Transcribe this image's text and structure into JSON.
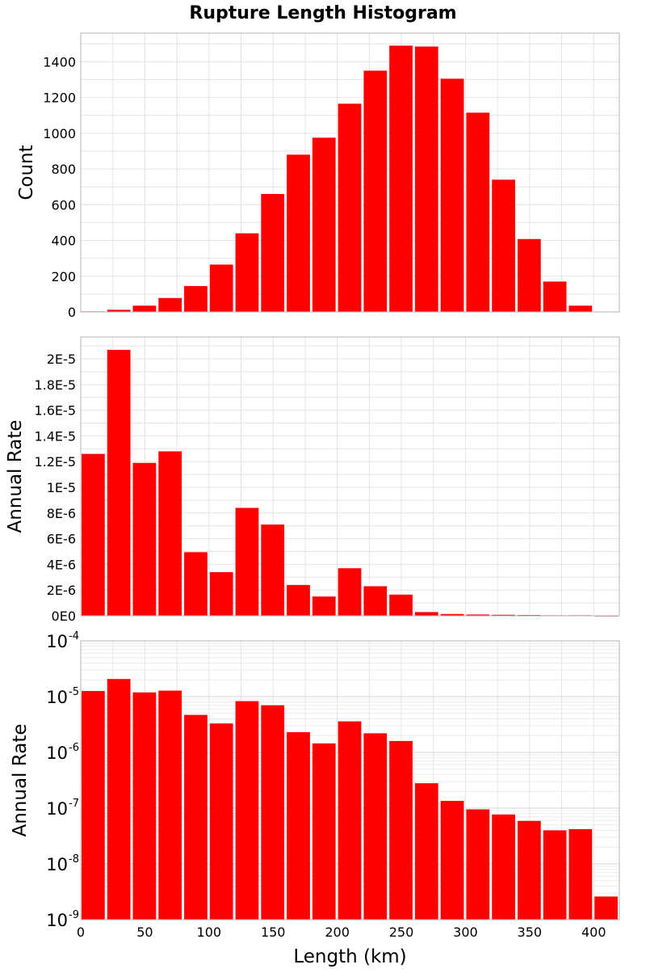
{
  "figure": {
    "title": "Rupture Length Histogram"
  },
  "chart_data": [
    {
      "type": "bar",
      "title": "Rupture Length Histogram",
      "xlabel": "",
      "ylabel": "Count",
      "xlim": [
        0,
        420
      ],
      "ylim": [
        0,
        1560
      ],
      "yscale": "linear",
      "yticks": [
        0,
        200,
        400,
        600,
        800,
        1000,
        1200,
        1400
      ],
      "ytick_labels": [
        "0",
        "200",
        "400",
        "600",
        "800",
        "1000",
        "1200",
        "1400"
      ],
      "grid": true,
      "bin_width": 20,
      "color": "#ff0000",
      "x": [
        10,
        30,
        50,
        70,
        90,
        110,
        130,
        150,
        170,
        190,
        210,
        230,
        250,
        270,
        290,
        310,
        330,
        350,
        370,
        390,
        410
      ],
      "values": [
        3,
        12,
        35,
        78,
        145,
        265,
        440,
        660,
        880,
        975,
        1165,
        1350,
        1490,
        1485,
        1305,
        1115,
        740,
        408,
        170,
        35,
        2
      ]
    },
    {
      "type": "bar",
      "xlabel": "",
      "ylabel": "Annual Rate",
      "xlim": [
        0,
        420
      ],
      "ylim": [
        0,
        2.17e-05
      ],
      "yscale": "linear",
      "yticks": [
        0,
        2e-06,
        4e-06,
        6e-06,
        8e-06,
        1e-05,
        1.2e-05,
        1.4e-05,
        1.6e-05,
        1.8e-05,
        2e-05
      ],
      "ytick_labels": [
        "0E0",
        "2E-6",
        "4E-6",
        "6E-6",
        "8E-6",
        "1E-5",
        "1.2E-5",
        "1.4E-5",
        "1.6E-5",
        "1.8E-5",
        "2E-5"
      ],
      "grid": true,
      "bin_width": 20,
      "color": "#ff0000",
      "x": [
        10,
        30,
        50,
        70,
        90,
        110,
        130,
        150,
        170,
        190,
        210,
        230,
        250,
        270,
        290,
        310,
        330,
        350,
        370,
        390,
        410
      ],
      "values": [
        1.26e-05,
        2.07e-05,
        1.19e-05,
        1.28e-05,
        4.95e-06,
        3.4e-06,
        8.4e-06,
        7.1e-06,
        2.4e-06,
        1.5e-06,
        3.7e-06,
        2.3e-06,
        1.65e-06,
        2.9e-07,
        1.4e-07,
        1e-07,
        8e-08,
        6e-08,
        4e-08,
        4.2e-08,
        2.6e-09
      ]
    },
    {
      "type": "bar",
      "xlabel": "Length (km)",
      "ylabel": "Annual Rate",
      "xlim": [
        0,
        420
      ],
      "ylim": [
        1e-09,
        0.0001
      ],
      "yscale": "log",
      "yticks": [
        1e-09,
        1e-08,
        1e-07,
        1e-06,
        1e-05,
        0.0001
      ],
      "ytick_labels": [
        {
          "base": "10",
          "exp": "-9"
        },
        {
          "base": "10",
          "exp": "-8"
        },
        {
          "base": "10",
          "exp": "-7"
        },
        {
          "base": "10",
          "exp": "-6"
        },
        {
          "base": "10",
          "exp": "-5"
        },
        {
          "base": "10",
          "exp": "-4"
        }
      ],
      "xticks": [
        0,
        50,
        100,
        150,
        200,
        250,
        300,
        350,
        400
      ],
      "xtick_labels": [
        "0",
        "50",
        "100",
        "150",
        "200",
        "250",
        "300",
        "350",
        "400"
      ],
      "grid": true,
      "bin_width": 20,
      "color": "#ff0000",
      "x": [
        10,
        30,
        50,
        70,
        90,
        110,
        130,
        150,
        170,
        190,
        210,
        230,
        250,
        270,
        290,
        310,
        330,
        350,
        370,
        390,
        410
      ],
      "values": [
        1.26e-05,
        2.07e-05,
        1.19e-05,
        1.28e-05,
        4.7e-06,
        3.3e-06,
        8.3e-06,
        7e-06,
        2.3e-06,
        1.45e-06,
        3.6e-06,
        2.2e-06,
        1.6e-06,
        2.8e-07,
        1.35e-07,
        9.5e-08,
        7.7e-08,
        5.9e-08,
        4e-08,
        4.2e-08,
        2.6e-09
      ]
    }
  ]
}
